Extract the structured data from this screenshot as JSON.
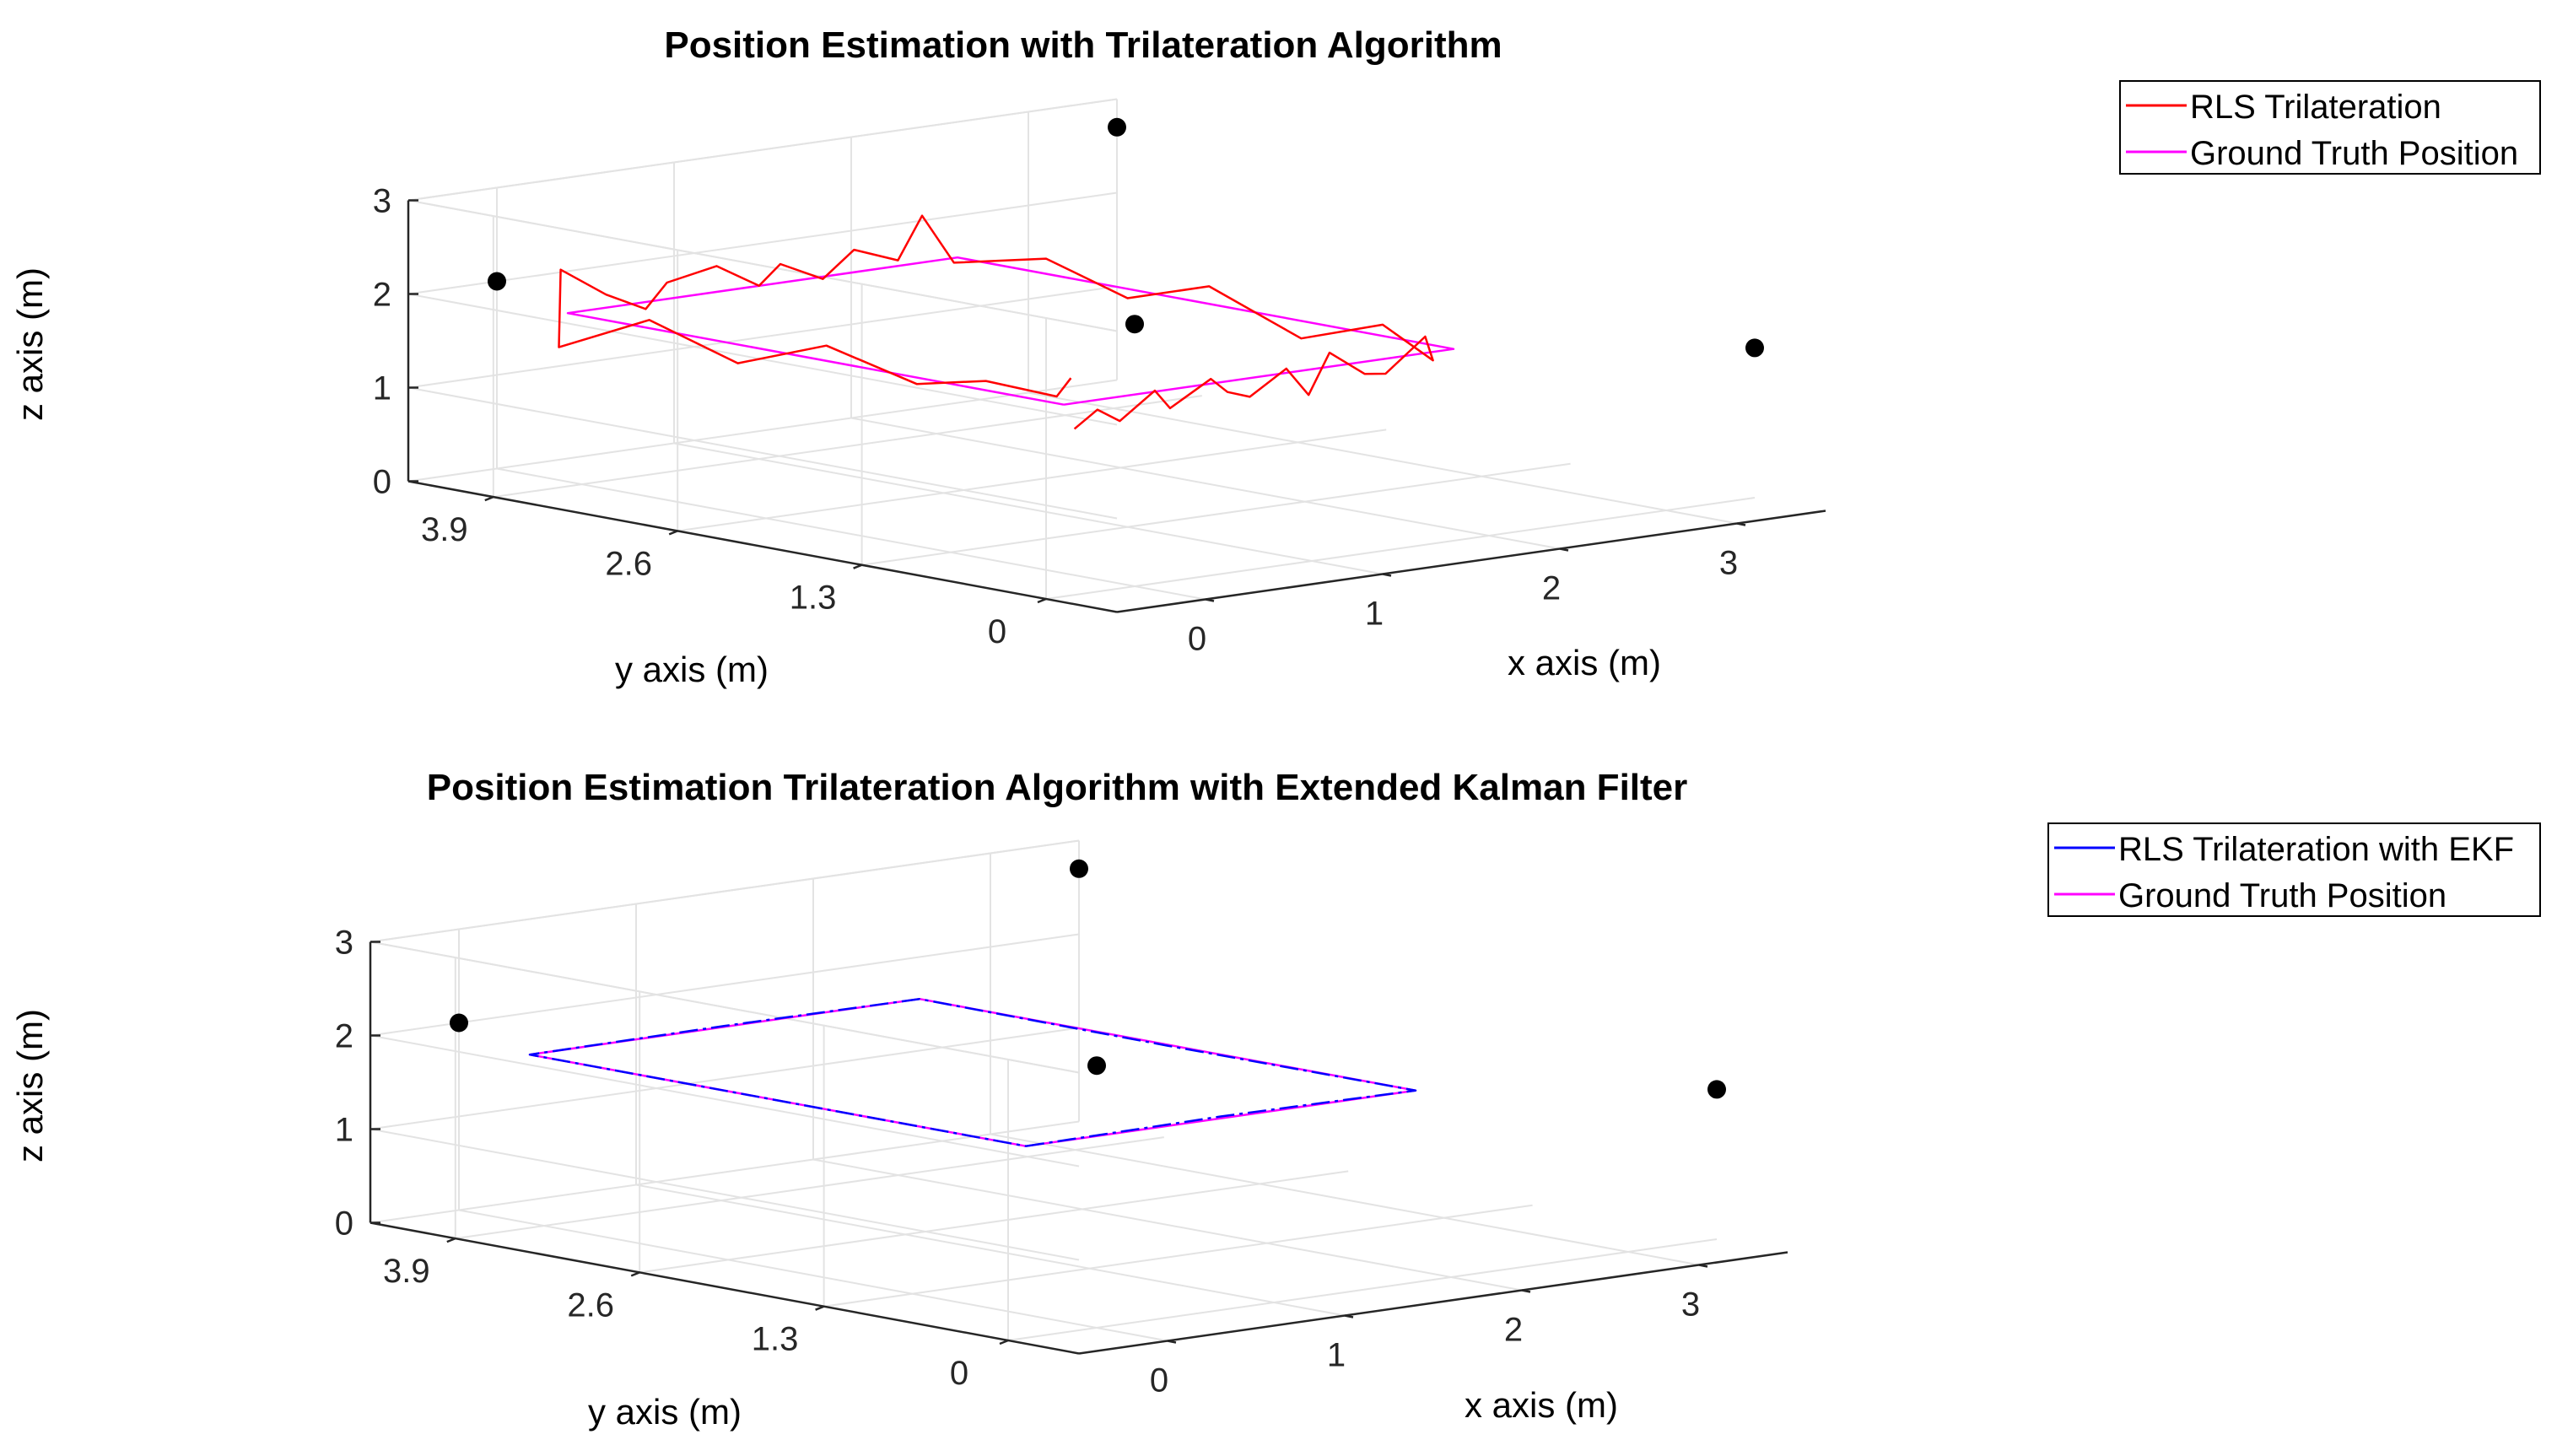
{
  "chart_data": [
    {
      "type": "line",
      "title": "Position Estimation with Trilateration Algorithm",
      "xlabel": "x axis (m)",
      "ylabel": "y axis (m)",
      "zlabel": "z axis (m)",
      "xlim": [
        -0.5,
        3.5
      ],
      "ylim": [
        -0.5,
        4.5
      ],
      "zlim": [
        0,
        3
      ],
      "x_ticks": [
        "0",
        "1",
        "2",
        "3"
      ],
      "x_tick_values": [
        0,
        1,
        2,
        3
      ],
      "y_ticks": [
        "0",
        "1.3",
        "2.6",
        "3.9"
      ],
      "y_tick_values": [
        0,
        1.3,
        2.6,
        3.9
      ],
      "z_ticks": [
        "0",
        "1",
        "2",
        "3"
      ],
      "z_tick_values": [
        0,
        1,
        2,
        3
      ],
      "grid": true,
      "legend_position": "outside-top-right",
      "anchors": [
        [
          3.5,
          0,
          1.6
        ],
        [
          0,
          4.5,
          2.0
        ],
        [
          0,
          0,
          2.8
        ],
        [
          3.5,
          4.5,
          2.7
        ]
      ],
      "series": [
        {
          "name": "RLS Trilateration",
          "color": "#ff0000",
          "dashed": false,
          "points": [
            [
              0.02,
              0.45,
              1.55
            ],
            [
              0.15,
              0.45,
              1.72
            ],
            [
              0.3,
              0.48,
              1.55
            ],
            [
              0.45,
              0.42,
              1.85
            ],
            [
              0.6,
              0.5,
              1.6
            ],
            [
              0.75,
              0.4,
              1.9
            ],
            [
              0.9,
              0.47,
              1.7
            ],
            [
              1.05,
              0.5,
              1.6
            ],
            [
              1.2,
              0.43,
              1.88
            ],
            [
              1.35,
              0.46,
              1.55
            ],
            [
              1.5,
              0.5,
              1.95
            ],
            [
              1.65,
              0.44,
              1.7
            ],
            [
              1.8,
              0.48,
              1.65
            ],
            [
              2.0,
              0.45,
              2.0
            ],
            [
              2.1,
              0.52,
              1.7
            ],
            [
              2.2,
              1.0,
              1.92
            ],
            [
              2.22,
              1.6,
              1.6
            ],
            [
              2.18,
              2.2,
              2.0
            ],
            [
              2.2,
              2.8,
              1.7
            ],
            [
              2.22,
              3.4,
              1.95
            ],
            [
              2.18,
              4.0,
              1.75
            ],
            [
              2.0,
              4.0,
              2.3
            ],
            [
              1.8,
              3.92,
              1.9
            ],
            [
              1.6,
              3.98,
              2.05
            ],
            [
              1.4,
              3.95,
              1.8
            ],
            [
              1.2,
              4.0,
              2.0
            ],
            [
              1.0,
              3.9,
              1.85
            ],
            [
              0.8,
              3.95,
              2.1
            ],
            [
              0.6,
              4.05,
              1.95
            ],
            [
              0.4,
              3.95,
              1.75
            ],
            [
              0.2,
              3.98,
              1.95
            ],
            [
              0.0,
              4.05,
              2.25
            ],
            [
              -0.05,
              4.0,
              1.45
            ],
            [
              -0.02,
              3.4,
              1.9
            ],
            [
              0.0,
              2.8,
              1.6
            ],
            [
              0.02,
              2.2,
              1.95
            ],
            [
              0.05,
              1.6,
              1.7
            ],
            [
              0.0,
              1.05,
              1.9
            ],
            [
              0.2,
              0.8,
              1.75
            ],
            [
              0.4,
              0.95,
              1.85
            ]
          ]
        },
        {
          "name": "Ground Truth Position",
          "color": "#ff00ff",
          "dashed": false,
          "points": [
            [
              0.0,
              0.5,
              1.8
            ],
            [
              2.2,
              0.5,
              1.8
            ],
            [
              2.2,
              4.0,
              1.8
            ],
            [
              0.0,
              4.0,
              1.8
            ],
            [
              0.0,
              0.5,
              1.8
            ]
          ]
        }
      ]
    },
    {
      "type": "line",
      "title": "Position Estimation Trilateration Algorithm with Extended Kalman Filter",
      "xlabel": "x axis (m)",
      "ylabel": "y axis (m)",
      "zlabel": "z axis (m)",
      "xlim": [
        -0.5,
        3.5
      ],
      "ylim": [
        -0.5,
        4.5
      ],
      "zlim": [
        0,
        3
      ],
      "x_ticks": [
        "0",
        "1",
        "2",
        "3"
      ],
      "x_tick_values": [
        0,
        1,
        2,
        3
      ],
      "y_ticks": [
        "0",
        "1.3",
        "2.6",
        "3.9"
      ],
      "y_tick_values": [
        0,
        1.3,
        2.6,
        3.9
      ],
      "z_ticks": [
        "0",
        "1",
        "2",
        "3"
      ],
      "z_tick_values": [
        0,
        1,
        2,
        3
      ],
      "grid": true,
      "legend_position": "outside-top-right",
      "anchors": [
        [
          3.5,
          0,
          1.6
        ],
        [
          0,
          4.5,
          2.0
        ],
        [
          0,
          0,
          2.8
        ],
        [
          3.5,
          4.5,
          2.7
        ]
      ],
      "series": [
        {
          "name": "RLS Trilateration with EKF",
          "color": "#0000ff",
          "dashed": true,
          "points": [
            [
              0.0,
              0.5,
              1.8
            ],
            [
              1.1,
              0.5,
              1.82
            ],
            [
              2.2,
              0.5,
              1.8
            ],
            [
              2.2,
              2.25,
              1.79
            ],
            [
              2.2,
              4.0,
              1.8
            ],
            [
              1.1,
              4.0,
              1.81
            ],
            [
              0.0,
              4.0,
              1.8
            ],
            [
              0.0,
              2.25,
              1.8
            ],
            [
              0.0,
              0.5,
              1.8
            ]
          ]
        },
        {
          "name": "Ground Truth Position",
          "color": "#ff00ff",
          "dashed": false,
          "points": [
            [
              0.0,
              0.5,
              1.8
            ],
            [
              2.2,
              0.5,
              1.8
            ],
            [
              2.2,
              4.0,
              1.8
            ],
            [
              0.0,
              4.0,
              1.8
            ],
            [
              0.0,
              0.5,
              1.8
            ]
          ]
        }
      ]
    }
  ]
}
